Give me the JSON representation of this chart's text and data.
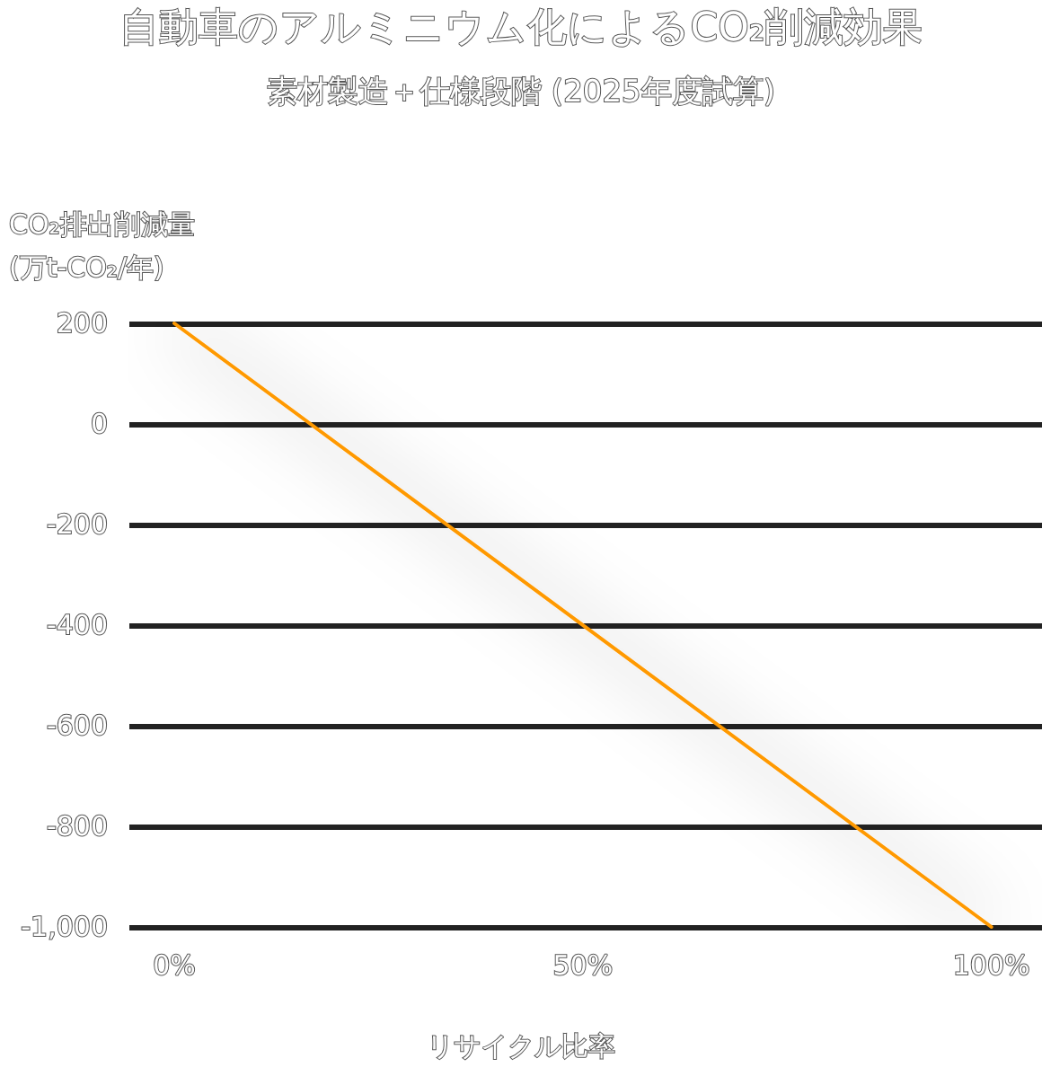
{
  "chart_data": {
    "type": "line",
    "title": "自動車のアルミニウム化によるCO₂削減効果",
    "subtitle": "素材製造＋仕様段階 (2025年度試算)",
    "ylabel": "CO₂排出削減量\n(万t-CO₂/年)",
    "xlabel": "リサイクル比率",
    "x": [
      0,
      100
    ],
    "series": [
      {
        "color": "#ff9900",
        "values": [
          200,
          -1000
        ]
      }
    ],
    "xlim": [
      -5.5,
      106.2
    ],
    "xticks": [
      {
        "value": 0,
        "label": "0%"
      },
      {
        "value": 50,
        "label": "50%"
      },
      {
        "value": 100,
        "label": "100%"
      }
    ],
    "ylim": [
      -1000,
      200
    ],
    "yticks": [
      {
        "value": 200,
        "label": "200"
      },
      {
        "value": 0,
        "label": "0"
      },
      {
        "value": -200,
        "label": "-200"
      },
      {
        "value": -400,
        "label": "-400"
      },
      {
        "value": -600,
        "label": "-600"
      },
      {
        "value": -800,
        "label": "-800"
      },
      {
        "value": -1000,
        "label": "-1,000"
      }
    ],
    "grid": "y",
    "marker": "none",
    "line_style": "solid"
  }
}
